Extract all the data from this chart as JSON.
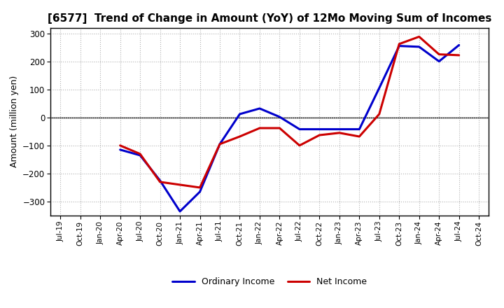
{
  "title": "[6577]  Trend of Change in Amount (YoY) of 12Mo Moving Sum of Incomes",
  "ylabel": "Amount (million yen)",
  "background_color": "#ffffff",
  "grid_color": "#b0b0b0",
  "ordinary_income_color": "#0000cc",
  "net_income_color": "#cc0000",
  "line_width": 2.2,
  "ylim": [
    -350,
    320
  ],
  "yticks": [
    -300,
    -200,
    -100,
    0,
    100,
    200,
    300
  ],
  "ordinary_income": [
    null,
    null,
    null,
    -115,
    -135,
    -225,
    -335,
    -265,
    -95,
    12,
    32,
    2,
    -42,
    -42,
    -42,
    -42,
    105,
    255,
    252,
    200,
    258,
    null
  ],
  "net_income": [
    null,
    null,
    null,
    -100,
    -130,
    -230,
    -240,
    -250,
    -95,
    -68,
    -38,
    -38,
    -100,
    -63,
    -55,
    -68,
    12,
    262,
    288,
    225,
    222,
    null
  ],
  "xtick_labels": [
    "Jul-19",
    "Oct-19",
    "Jan-20",
    "Apr-20",
    "Jul-20",
    "Oct-20",
    "Jan-21",
    "Apr-21",
    "Jul-21",
    "Oct-21",
    "Jan-22",
    "Apr-22",
    "Jul-22",
    "Oct-22",
    "Jan-23",
    "Apr-23",
    "Jul-23",
    "Oct-23",
    "Jan-24",
    "Apr-24",
    "Jul-24",
    "Oct-24"
  ],
  "legend_labels": [
    "Ordinary Income",
    "Net Income"
  ]
}
